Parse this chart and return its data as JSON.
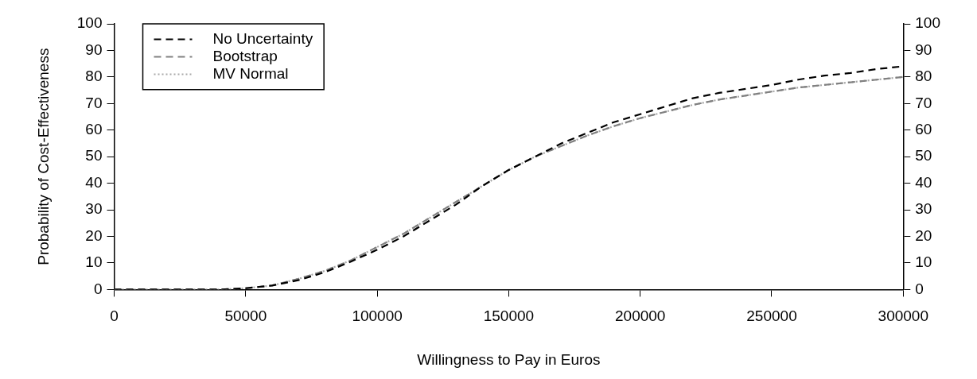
{
  "chart_data": {
    "type": "line",
    "xlabel": "Willingness to Pay in Euros",
    "ylabel": "Probability of Cost-Effectiveness",
    "x": [
      0,
      10000,
      20000,
      30000,
      40000,
      50000,
      60000,
      70000,
      80000,
      90000,
      100000,
      110000,
      120000,
      130000,
      140000,
      150000,
      160000,
      170000,
      180000,
      190000,
      200000,
      210000,
      220000,
      230000,
      240000,
      250000,
      260000,
      270000,
      280000,
      290000,
      300000
    ],
    "series": [
      {
        "name": "No Uncertainty",
        "color": "#000000",
        "line_style": "dashed",
        "values": [
          0,
          0,
          0,
          0,
          0,
          0.5,
          1.5,
          3.5,
          6.5,
          10.5,
          15,
          20,
          26,
          32,
          39,
          45,
          50,
          55,
          59,
          63,
          66,
          69,
          72,
          74,
          75.5,
          77,
          79,
          80.5,
          81.5,
          83,
          84
        ]
      },
      {
        "name": "Bootstrap",
        "color": "#808080",
        "line_style": "dashed",
        "values": [
          0,
          0,
          0,
          0,
          0,
          0.5,
          1.5,
          4,
          7,
          11,
          16,
          21,
          27,
          33,
          39,
          45,
          50,
          54,
          58,
          61.5,
          64.5,
          67,
          69.5,
          71.5,
          73,
          74.5,
          76,
          77,
          78,
          79,
          80
        ]
      },
      {
        "name": "MV Normal",
        "color": "#a8a8a8",
        "line_style": "dotted",
        "values": [
          0,
          0,
          0,
          0,
          0,
          0.5,
          1.5,
          4,
          7,
          11,
          16,
          21,
          27,
          33,
          39,
          45,
          50,
          54,
          58,
          61.5,
          64.5,
          67,
          69.5,
          71.5,
          73,
          74.5,
          76,
          77,
          78,
          79,
          80
        ]
      }
    ],
    "xlim": [
      0,
      300000
    ],
    "xticks": [
      0,
      50000,
      100000,
      150000,
      200000,
      250000,
      300000
    ],
    "ylim": [
      0,
      100
    ],
    "yticks": [
      0,
      10,
      20,
      30,
      40,
      50,
      60,
      70,
      80,
      90,
      100
    ],
    "y2lim": [
      0,
      100
    ],
    "y2ticks": [
      0,
      10,
      20,
      30,
      40,
      50,
      60,
      70,
      80,
      90,
      100
    ],
    "grid": false,
    "legend": "top left",
    "marker": "none"
  }
}
